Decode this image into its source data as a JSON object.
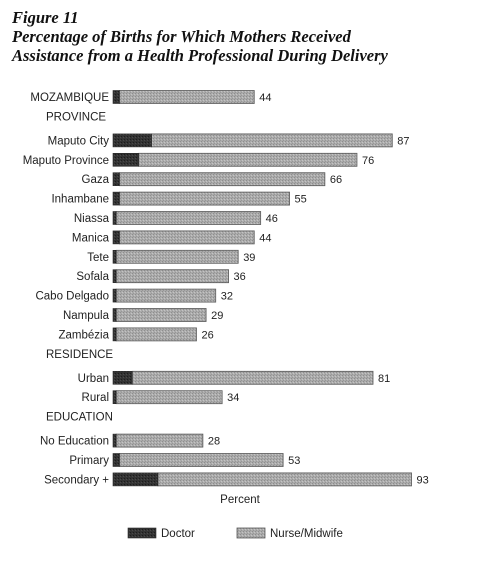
{
  "figure": {
    "label": "Figure 11",
    "title_line1": "Percentage of Births for Which Mothers Received",
    "title_line2": "Assistance from a Health Professional During Delivery"
  },
  "chart_data": {
    "type": "bar",
    "orientation": "horizontal",
    "stacked": true,
    "xlabel": "Percent",
    "xlim": [
      0,
      100
    ],
    "grid": false,
    "legend_position": "bottom",
    "groups": [
      {
        "header": "",
        "rows": [
          {
            "label": "MOZAMBIQUE",
            "doctor": 2,
            "total": 44
          }
        ]
      },
      {
        "header": "PROVINCE",
        "rows": [
          {
            "label": "Maputo City",
            "doctor": 12,
            "total": 87
          },
          {
            "label": "Maputo Province",
            "doctor": 8,
            "total": 76
          },
          {
            "label": "Gaza",
            "doctor": 2,
            "total": 66
          },
          {
            "label": "Inhambane",
            "doctor": 2,
            "total": 55
          },
          {
            "label": "Niassa",
            "doctor": 1,
            "total": 46
          },
          {
            "label": "Manica",
            "doctor": 2,
            "total": 44
          },
          {
            "label": "Tete",
            "doctor": 1,
            "total": 39
          },
          {
            "label": "Sofala",
            "doctor": 1,
            "total": 36
          },
          {
            "label": "Cabo Delgado",
            "doctor": 1,
            "total": 32
          },
          {
            "label": "Nampula",
            "doctor": 1,
            "total": 29
          },
          {
            "label": "Zambézia",
            "doctor": 1,
            "total": 26
          }
        ]
      },
      {
        "header": "RESIDENCE",
        "rows": [
          {
            "label": "Urban",
            "doctor": 6,
            "total": 81
          },
          {
            "label": "Rural",
            "doctor": 1,
            "total": 34
          }
        ]
      },
      {
        "header": "EDUCATION",
        "rows": [
          {
            "label": "No Education",
            "doctor": 1,
            "total": 28
          },
          {
            "label": "Primary",
            "doctor": 2,
            "total": 53
          },
          {
            "label": "Secondary +",
            "doctor": 14,
            "total": 93
          }
        ]
      }
    ],
    "series": [
      {
        "name": "Doctor",
        "color": "#2e2e2e"
      },
      {
        "name": "Nurse/Midwife",
        "color": "#a9a9a9"
      }
    ]
  }
}
